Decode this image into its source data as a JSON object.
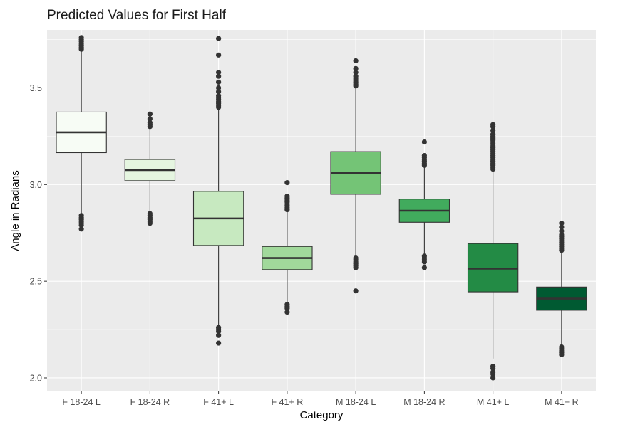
{
  "chart_data": {
    "type": "boxplot",
    "title": "Predicted Values for First Half",
    "xlabel": "Category",
    "ylabel": "Angle in Radians",
    "ylim": [
      1.93,
      3.8
    ],
    "yticks": [
      2.0,
      2.5,
      3.0,
      3.5
    ],
    "ytick_labels": [
      "2.0",
      "2.5",
      "3.0",
      "3.5"
    ],
    "grid": true,
    "background": "#ebebeb",
    "categories": [
      "F 18-24 L",
      "F 18-24 R",
      "F 41+ L",
      "F 41+ R",
      "M 18-24 L",
      "M 18-24 R",
      "M 41+ L",
      "M 41+ R"
    ],
    "boxes": [
      {
        "category": "F 18-24 L",
        "whisker_low": 2.85,
        "q1": 3.165,
        "median": 3.27,
        "q3": 3.375,
        "whisker_high": 3.69,
        "fill": "#f7fcf5",
        "outliers_high": [
          3.7,
          3.71,
          3.72,
          3.73,
          3.74,
          3.75,
          3.76
        ],
        "outliers_low": [
          2.84,
          2.83,
          2.82,
          2.81,
          2.8,
          2.79,
          2.77
        ]
      },
      {
        "category": "F 18-24 R",
        "whisker_low": 2.86,
        "q1": 3.02,
        "median": 3.075,
        "q3": 3.13,
        "whisker_high": 3.29,
        "fill": "#e5f5e0",
        "outliers_high": [
          3.3,
          3.31,
          3.32,
          3.34,
          3.365
        ],
        "outliers_low": [
          2.85,
          2.84,
          2.83,
          2.82,
          2.81,
          2.8
        ]
      },
      {
        "category": "F 41+ L",
        "whisker_low": 2.27,
        "q1": 2.685,
        "median": 2.825,
        "q3": 2.965,
        "whisker_high": 3.39,
        "fill": "#c7e9c0",
        "outliers_high": [
          3.4,
          3.41,
          3.42,
          3.43,
          3.44,
          3.45,
          3.46,
          3.48,
          3.5,
          3.53,
          3.56,
          3.58,
          3.67,
          3.755
        ],
        "outliers_low": [
          2.26,
          2.25,
          2.24,
          2.22,
          2.18
        ]
      },
      {
        "category": "F 41+ R",
        "whisker_low": 2.39,
        "q1": 2.56,
        "median": 2.62,
        "q3": 2.68,
        "whisker_high": 2.86,
        "fill": "#a1d99b",
        "outliers_high": [
          2.87,
          2.88,
          2.89,
          2.9,
          2.91,
          2.92,
          2.93,
          2.94,
          3.01
        ],
        "outliers_low": [
          2.38,
          2.37,
          2.36,
          2.34
        ]
      },
      {
        "category": "M 18-24 L",
        "whisker_low": 2.63,
        "q1": 2.95,
        "median": 3.06,
        "q3": 3.17,
        "whisker_high": 3.5,
        "fill": "#74c476",
        "outliers_high": [
          3.51,
          3.52,
          3.53,
          3.54,
          3.55,
          3.56,
          3.58,
          3.6,
          3.64
        ],
        "outliers_low": [
          2.62,
          2.61,
          2.6,
          2.59,
          2.58,
          2.57,
          2.45
        ]
      },
      {
        "category": "M 18-24 R",
        "whisker_low": 2.64,
        "q1": 2.805,
        "median": 2.865,
        "q3": 2.925,
        "whisker_high": 3.09,
        "fill": "#41ab5d",
        "outliers_high": [
          3.1,
          3.11,
          3.12,
          3.13,
          3.14,
          3.15,
          3.22
        ],
        "outliers_low": [
          2.63,
          2.62,
          2.61,
          2.6,
          2.57
        ]
      },
      {
        "category": "M 41+ L",
        "whisker_low": 2.1,
        "q1": 2.445,
        "median": 2.565,
        "q3": 2.695,
        "whisker_high": 3.07,
        "fill": "#238b45",
        "outliers_high": [
          3.08,
          3.09,
          3.1,
          3.11,
          3.12,
          3.13,
          3.14,
          3.15,
          3.16,
          3.17,
          3.18,
          3.19,
          3.2,
          3.21,
          3.22,
          3.23,
          3.24,
          3.25,
          3.26,
          3.28,
          3.3,
          3.31
        ],
        "outliers_low": [
          2.06,
          2.05,
          2.03,
          2.02,
          2.0
        ]
      },
      {
        "category": "M 41+ R",
        "whisker_low": 2.17,
        "q1": 2.35,
        "median": 2.41,
        "q3": 2.47,
        "whisker_high": 2.65,
        "fill": "#005a32",
        "outliers_high": [
          2.66,
          2.67,
          2.68,
          2.69,
          2.7,
          2.71,
          2.72,
          2.73,
          2.74,
          2.76,
          2.78,
          2.8
        ],
        "outliers_low": [
          2.16,
          2.15,
          2.14,
          2.13,
          2.12
        ]
      }
    ]
  }
}
